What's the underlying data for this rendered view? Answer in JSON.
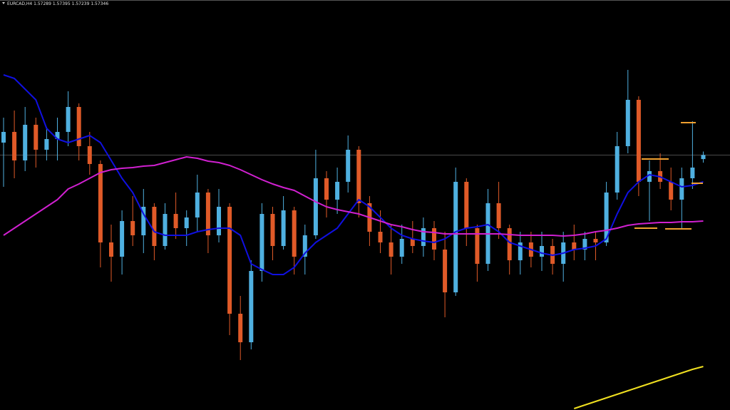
{
  "chart_data": {
    "type": "candlestick",
    "title": "EURCAD,H4",
    "ylim": [
      1.5377,
      1.5952
    ],
    "up_color": "#4fb0e0",
    "down_color": "#e05a28",
    "open": [
      1.5752,
      1.5767,
      1.5727,
      1.5777,
      1.5742,
      1.5757,
      1.5767,
      1.5802,
      1.5747,
      1.5722,
      1.5612,
      1.5592,
      1.5642,
      1.5622,
      1.5662,
      1.5607,
      1.5652,
      1.5632,
      1.5647,
      1.5682,
      1.5622,
      1.5662,
      1.5512,
      1.5472,
      1.5572,
      1.5652,
      1.5607,
      1.5657,
      1.5592,
      1.5622,
      1.5702,
      1.5672,
      1.5697,
      1.5742,
      1.5667,
      1.5627,
      1.5612,
      1.5592,
      1.5617,
      1.5607,
      1.5632,
      1.5602,
      1.5542,
      1.5697,
      1.5632,
      1.5582,
      1.5667,
      1.5632,
      1.5587,
      1.5612,
      1.5592,
      1.5607,
      1.5582,
      1.5612,
      1.5602,
      1.5617,
      1.5612,
      1.5682,
      1.5747,
      1.5812,
      1.5697,
      1.5712,
      1.5697,
      1.5672,
      1.5702,
      1.57289
    ],
    "high": [
      1.5787,
      1.5797,
      1.5802,
      1.5787,
      1.5774,
      1.5787,
      1.5824,
      1.5807,
      1.5767,
      1.5727,
      1.5637,
      1.5657,
      1.5677,
      1.5687,
      1.5667,
      1.5667,
      1.5682,
      1.5657,
      1.5707,
      1.5687,
      1.5687,
      1.5667,
      1.5537,
      1.5587,
      1.5667,
      1.5662,
      1.5677,
      1.5662,
      1.5637,
      1.5742,
      1.5712,
      1.5717,
      1.5762,
      1.5747,
      1.5677,
      1.5657,
      1.5637,
      1.5637,
      1.5642,
      1.5647,
      1.5642,
      1.5627,
      1.5717,
      1.5702,
      1.5637,
      1.5687,
      1.5697,
      1.5637,
      1.5627,
      1.5627,
      1.5627,
      1.5617,
      1.5627,
      1.5637,
      1.5627,
      1.5627,
      1.5697,
      1.5767,
      1.5854,
      1.5817,
      1.5727,
      1.5737,
      1.5717,
      1.5717,
      1.5782,
      1.57395
    ],
    "low": [
      1.569,
      1.5702,
      1.5712,
      1.5717,
      1.5727,
      1.5727,
      1.5747,
      1.5727,
      1.5707,
      1.5577,
      1.5557,
      1.5567,
      1.5607,
      1.5597,
      1.5587,
      1.5602,
      1.5617,
      1.5607,
      1.5627,
      1.5597,
      1.5612,
      1.5482,
      1.5447,
      1.5462,
      1.5557,
      1.5587,
      1.5602,
      1.5567,
      1.5567,
      1.5617,
      1.5647,
      1.5652,
      1.5682,
      1.5647,
      1.5607,
      1.5597,
      1.5567,
      1.5582,
      1.5597,
      1.5592,
      1.5587,
      1.5507,
      1.5537,
      1.5607,
      1.5557,
      1.5572,
      1.5617,
      1.5567,
      1.5567,
      1.5577,
      1.5572,
      1.5567,
      1.5557,
      1.5587,
      1.5587,
      1.5587,
      1.5607,
      1.5672,
      1.5737,
      1.5677,
      1.5642,
      1.5687,
      1.5657,
      1.5632,
      1.5687,
      1.57239
    ],
    "close": [
      1.5767,
      1.5727,
      1.5777,
      1.5742,
      1.5757,
      1.5767,
      1.5802,
      1.5747,
      1.5722,
      1.5612,
      1.5592,
      1.5642,
      1.5622,
      1.5662,
      1.5607,
      1.5652,
      1.5632,
      1.5647,
      1.5682,
      1.5622,
      1.5662,
      1.5512,
      1.5472,
      1.5572,
      1.5652,
      1.5607,
      1.5657,
      1.5592,
      1.5622,
      1.5702,
      1.5672,
      1.5697,
      1.5742,
      1.5667,
      1.5627,
      1.5612,
      1.5592,
      1.5617,
      1.5607,
      1.5632,
      1.5602,
      1.5542,
      1.5697,
      1.5632,
      1.5582,
      1.5667,
      1.5632,
      1.5587,
      1.5612,
      1.5592,
      1.5607,
      1.5582,
      1.5612,
      1.5602,
      1.5617,
      1.5612,
      1.5682,
      1.5747,
      1.5812,
      1.5697,
      1.5712,
      1.5697,
      1.5672,
      1.5702,
      1.5717,
      1.57346
    ],
    "series": [
      {
        "color": "#1010e0",
        "values": [
          1.5847,
          1.5842,
          1.5827,
          1.5812,
          1.5772,
          1.5757,
          1.5752,
          1.5757,
          1.5762,
          1.5752,
          1.5727,
          1.5702,
          1.5682,
          1.5652,
          1.5627,
          1.5622,
          1.5622,
          1.5622,
          1.5627,
          1.563,
          1.5632,
          1.5632,
          1.5622,
          1.5582,
          1.5574,
          1.5567,
          1.5567,
          1.5577,
          1.5597,
          1.5612,
          1.5622,
          1.5632,
          1.5652,
          1.5672,
          1.5662,
          1.5647,
          1.5632,
          1.5622,
          1.5617,
          1.5614,
          1.5612,
          1.5617,
          1.5627,
          1.5632,
          1.5634,
          1.5637,
          1.5627,
          1.5612,
          1.5607,
          1.5602,
          1.5597,
          1.5594,
          1.5597,
          1.5602,
          1.5604,
          1.5607,
          1.5617,
          1.5652,
          1.5682,
          1.5697,
          1.5707,
          1.5704,
          1.5697,
          1.569,
          1.5692,
          1.5697
        ]
      },
      {
        "color": "#d020d0",
        "values": [
          1.5622,
          1.5632,
          1.5642,
          1.5652,
          1.5662,
          1.5672,
          1.5687,
          1.5694,
          1.5702,
          1.571,
          1.5714,
          1.5716,
          1.5717,
          1.5719,
          1.572,
          1.5724,
          1.5728,
          1.5732,
          1.573,
          1.5726,
          1.5724,
          1.572,
          1.5714,
          1.5707,
          1.57,
          1.5694,
          1.5689,
          1.5685,
          1.5677,
          1.5669,
          1.5662,
          1.5658,
          1.5655,
          1.5652,
          1.5647,
          1.5642,
          1.5637,
          1.5634,
          1.563,
          1.5627,
          1.5626,
          1.5624,
          1.5624,
          1.5624,
          1.5624,
          1.5624,
          1.5624,
          1.5623,
          1.5622,
          1.5622,
          1.5622,
          1.5622,
          1.5621,
          1.5622,
          1.5624,
          1.5627,
          1.5629,
          1.5632,
          1.5636,
          1.5638,
          1.5639,
          1.564,
          1.564,
          1.5641,
          1.5641,
          1.5642
        ]
      },
      {
        "color": "#f0e020",
        "values": [
          null,
          null,
          null,
          null,
          null,
          null,
          null,
          null,
          null,
          null,
          null,
          null,
          null,
          null,
          null,
          null,
          null,
          null,
          null,
          null,
          null,
          null,
          null,
          null,
          null,
          null,
          null,
          null,
          null,
          null,
          null,
          null,
          null,
          null,
          null,
          null,
          null,
          null,
          null,
          null,
          null,
          null,
          null,
          null,
          null,
          null,
          null,
          null,
          null,
          null,
          null,
          null,
          null,
          1.5379,
          1.5384,
          1.5389,
          1.5394,
          1.5399,
          1.5404,
          1.5409,
          1.5414,
          1.5419,
          1.5424,
          1.5429,
          1.5434,
          1.5438
        ]
      }
    ],
    "levels": [
      1.5729,
      1.5632,
      1.5631,
      1.578,
      1.5695
    ],
    "level_color": "#f0a030"
  }
}
